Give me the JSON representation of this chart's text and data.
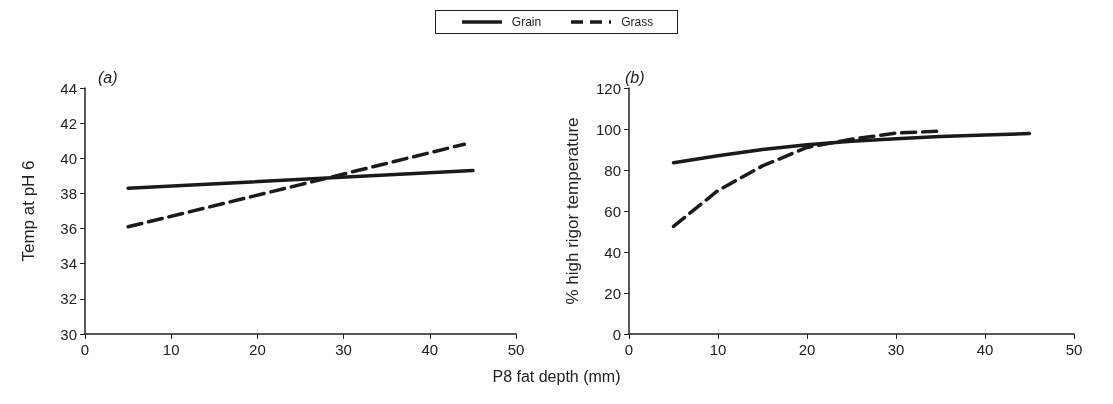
{
  "chart_data": [
    {
      "type": "line",
      "title": "(a)",
      "xlabel": "P8 fat depth (mm)",
      "ylabel": "Temp at pH 6",
      "xlim": [
        0,
        50
      ],
      "xticks": [
        0,
        10,
        20,
        30,
        40,
        50
      ],
      "ylim": [
        30,
        44
      ],
      "yticks": [
        30,
        32,
        34,
        36,
        38,
        40,
        42,
        44
      ],
      "legend": "top",
      "marker": "none",
      "series": [
        {
          "name": "Grain",
          "color": "#1a1a1a",
          "line_style": "solid",
          "x": [
            5,
            45
          ],
          "values": [
            38.3,
            39.3
          ]
        },
        {
          "name": "Grass",
          "color": "#1a1a1a",
          "line_style": "dashed",
          "x": [
            5,
            25,
            44
          ],
          "values": [
            36.1,
            38.5,
            40.8
          ]
        }
      ]
    },
    {
      "type": "line",
      "title": "(b)",
      "ylabel": "% high rigor temperature",
      "xlim": [
        0,
        50
      ],
      "xticks": [
        0,
        10,
        20,
        30,
        40,
        50
      ],
      "ylim": [
        0,
        120
      ],
      "yticks": [
        0,
        20,
        40,
        60,
        80,
        100,
        120
      ],
      "marker": "none",
      "series": [
        {
          "color": "#1a1a1a",
          "line_style": "solid",
          "x": [
            5,
            10,
            15,
            20,
            25,
            30,
            35,
            40,
            45
          ],
          "values": [
            83.5,
            87,
            90,
            92.3,
            94,
            95.3,
            96.3,
            97.1,
            97.8
          ]
        },
        {
          "color": "#1a1a1a",
          "line_style": "dashed",
          "x": [
            5,
            10,
            15,
            20,
            25,
            30,
            35
          ],
          "values": [
            52.5,
            70,
            82,
            91,
            95,
            98,
            99
          ]
        }
      ]
    }
  ]
}
